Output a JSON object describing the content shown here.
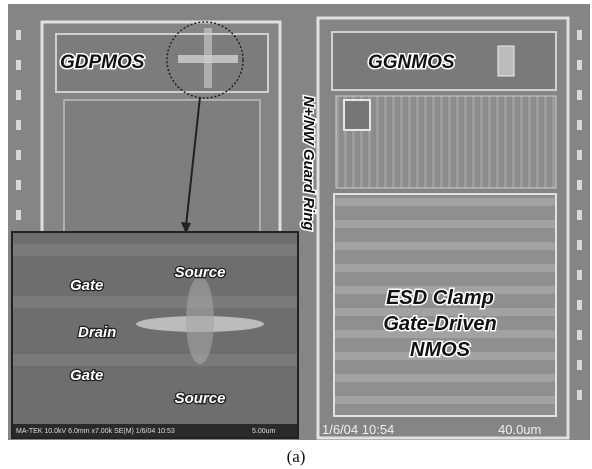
{
  "image": {
    "gdpmos": "GDPMOS",
    "ggnmos": "GGNMOS",
    "guard_ring": "N+/NW Guard Ring",
    "esd_clamp": [
      "ESD Clamp",
      "Gate-Driven",
      "NMOS"
    ],
    "footer_date": "1/6/04 10:54",
    "footer_scale": "40.0um"
  },
  "inset": {
    "source_top": "Source",
    "gate_top": "Gate",
    "drain": "Drain",
    "gate_bottom": "Gate",
    "source_bottom": "Source",
    "footer_info": "MA-TEK 10.0kV 6.0mm x7.00k SE(M) 1/6/04 10:53",
    "footer_scale": "5.00um"
  },
  "caption": "(a)"
}
